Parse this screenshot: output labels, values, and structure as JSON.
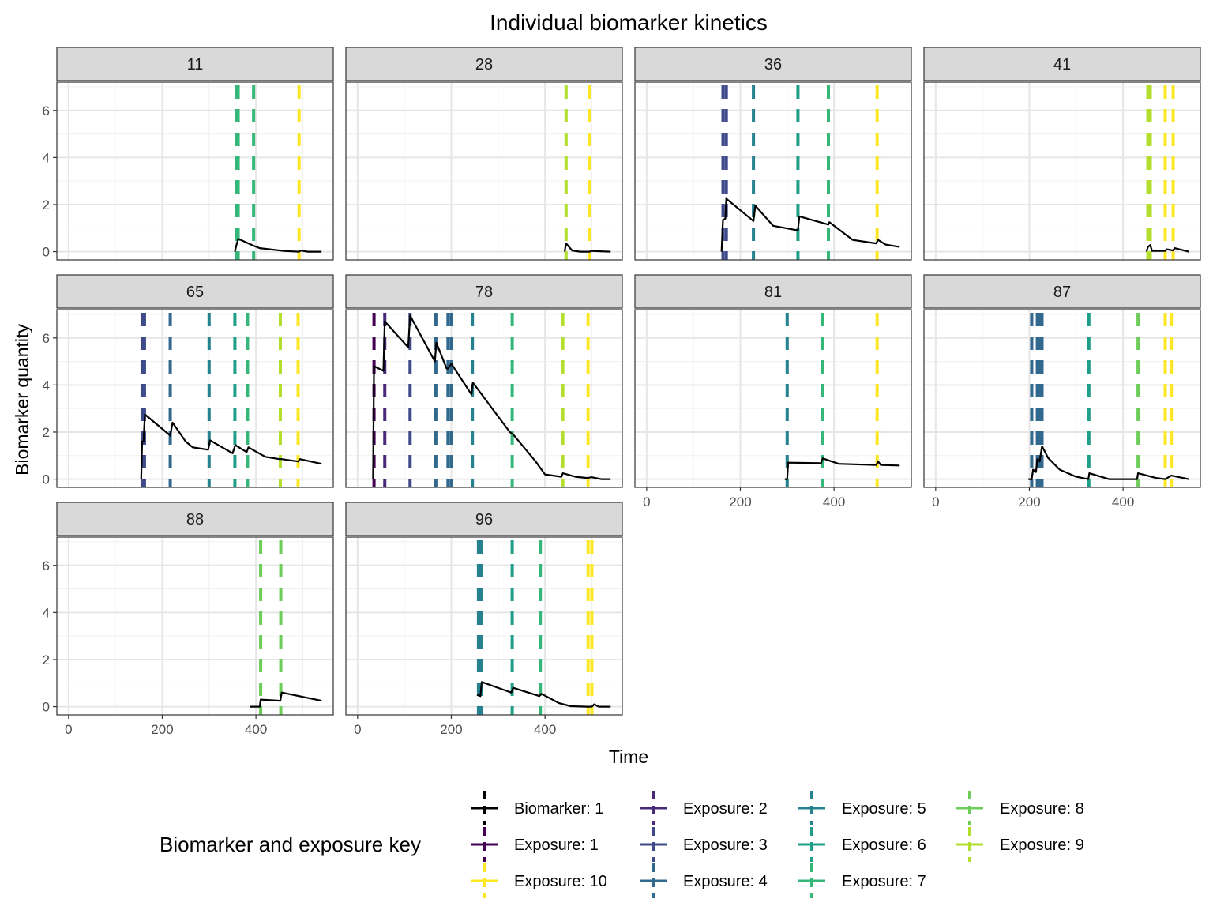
{
  "chart_data": {
    "type": "line",
    "title": "Individual biomarker kinetics",
    "xlabel": "Time",
    "ylabel": "Biomarker quantity",
    "xlim": [
      -25,
      565
    ],
    "ylim": [
      -0.35,
      7.2
    ],
    "x_ticks": [
      0,
      200,
      400
    ],
    "y_ticks": [
      0,
      2,
      4,
      6
    ],
    "grid": true,
    "facet_layout": {
      "ncol": 4,
      "nrow": 3
    },
    "legend": {
      "title": "Biomarker and exposure key",
      "position": "bottom",
      "entries": [
        {
          "label": "Biomarker: 1",
          "color": "#000000"
        },
        {
          "label": "Exposure: 1",
          "color": "#440154"
        },
        {
          "label": "Exposure: 10",
          "color": "#FDE725"
        },
        {
          "label": "Exposure: 2",
          "color": "#482878"
        },
        {
          "label": "Exposure: 3",
          "color": "#3E4A89"
        },
        {
          "label": "Exposure: 4",
          "color": "#31688E"
        },
        {
          "label": "Exposure: 5",
          "color": "#26828E"
        },
        {
          "label": "Exposure: 6",
          "color": "#1F9E89"
        },
        {
          "label": "Exposure: 7",
          "color": "#35B779"
        },
        {
          "label": "Exposure: 8",
          "color": "#6DCD59"
        },
        {
          "label": "Exposure: 9",
          "color": "#B4DE2C"
        }
      ]
    },
    "panels": [
      {
        "label": "11",
        "exposures": [
          {
            "x": 358,
            "color": "#35B779"
          },
          {
            "x": 362,
            "color": "#35B779"
          },
          {
            "x": 395,
            "color": "#35B779"
          },
          {
            "x": 492,
            "color": "#FDE725"
          }
        ],
        "series": [
          {
            "name": "Biomarker: 1",
            "points": [
              [
                355,
                0.0
              ],
              [
                358,
                0.25
              ],
              [
                362,
                0.55
              ],
              [
                395,
                0.25
              ],
              [
                408,
                0.15
              ],
              [
                460,
                0.03
              ],
              [
                492,
                0.0
              ],
              [
                496,
                0.05
              ],
              [
                510,
                0.0
              ],
              [
                540,
                0.0
              ]
            ]
          }
        ]
      },
      {
        "label": "28",
        "exposures": [
          {
            "x": 445,
            "color": "#B4DE2C"
          },
          {
            "x": 495,
            "color": "#FDE725"
          }
        ],
        "series": [
          {
            "name": "Biomarker: 1",
            "points": [
              [
                442,
                0.0
              ],
              [
                445,
                0.35
              ],
              [
                458,
                0.05
              ],
              [
                475,
                0.0
              ],
              [
                495,
                0.0
              ],
              [
                500,
                0.03
              ],
              [
                540,
                0.0
              ]
            ]
          }
        ]
      },
      {
        "label": "36",
        "exposures": [
          {
            "x": 163,
            "color": "#3E4A89"
          },
          {
            "x": 170,
            "color": "#3E4A89"
          },
          {
            "x": 228,
            "color": "#26828E"
          },
          {
            "x": 323,
            "color": "#1F9E89"
          },
          {
            "x": 388,
            "color": "#35B779"
          },
          {
            "x": 492,
            "color": "#FDE725"
          }
        ],
        "series": [
          {
            "name": "Biomarker: 1",
            "points": [
              [
                160,
                0.0
              ],
              [
                163,
                1.35
              ],
              [
                168,
                1.4
              ],
              [
                170,
                2.25
              ],
              [
                228,
                1.3
              ],
              [
                232,
                1.95
              ],
              [
                270,
                1.1
              ],
              [
                323,
                0.9
              ],
              [
                326,
                1.5
              ],
              [
                388,
                1.15
              ],
              [
                390,
                1.25
              ],
              [
                440,
                0.5
              ],
              [
                490,
                0.35
              ],
              [
                494,
                0.5
              ],
              [
                510,
                0.3
              ],
              [
                540,
                0.2
              ]
            ]
          }
        ]
      },
      {
        "label": "41",
        "exposures": [
          {
            "x": 453,
            "color": "#B4DE2C"
          },
          {
            "x": 458,
            "color": "#B4DE2C"
          },
          {
            "x": 490,
            "color": "#FDE725"
          },
          {
            "x": 507,
            "color": "#FDE725"
          }
        ],
        "series": [
          {
            "name": "Biomarker: 1",
            "points": [
              [
                450,
                0.0
              ],
              [
                453,
                0.2
              ],
              [
                458,
                0.28
              ],
              [
                462,
                0.03
              ],
              [
                490,
                0.03
              ],
              [
                493,
                0.1
              ],
              [
                507,
                0.05
              ],
              [
                510,
                0.15
              ],
              [
                540,
                0.0
              ]
            ]
          }
        ]
      },
      {
        "label": "65",
        "exposures": [
          {
            "x": 157,
            "color": "#3E4A89"
          },
          {
            "x": 162,
            "color": "#3E4A89"
          },
          {
            "x": 217,
            "color": "#31688E"
          },
          {
            "x": 300,
            "color": "#26828E"
          },
          {
            "x": 355,
            "color": "#1F9E89"
          },
          {
            "x": 382,
            "color": "#35B779"
          },
          {
            "x": 452,
            "color": "#B4DE2C"
          },
          {
            "x": 490,
            "color": "#FDE725"
          }
        ],
        "series": [
          {
            "name": "Biomarker: 1",
            "points": [
              [
                155,
                0.0
              ],
              [
                157,
                1.6
              ],
              [
                160,
                1.6
              ],
              [
                163,
                2.75
              ],
              [
                217,
                1.85
              ],
              [
                222,
                2.4
              ],
              [
                250,
                1.6
              ],
              [
                265,
                1.35
              ],
              [
                298,
                1.25
              ],
              [
                302,
                1.65
              ],
              [
                350,
                1.1
              ],
              [
                356,
                1.45
              ],
              [
                380,
                1.15
              ],
              [
                384,
                1.35
              ],
              [
                420,
                0.95
              ],
              [
                450,
                0.85
              ],
              [
                455,
                0.85
              ],
              [
                490,
                0.75
              ],
              [
                494,
                0.85
              ],
              [
                540,
                0.65
              ]
            ]
          }
        ]
      },
      {
        "label": "78",
        "exposures": [
          {
            "x": 35,
            "color": "#440154"
          },
          {
            "x": 58,
            "color": "#482878"
          },
          {
            "x": 112,
            "color": "#3E4A89"
          },
          {
            "x": 167,
            "color": "#31688E"
          },
          {
            "x": 193,
            "color": "#31688E"
          },
          {
            "x": 200,
            "color": "#31688E"
          },
          {
            "x": 245,
            "color": "#26828E"
          },
          {
            "x": 330,
            "color": "#35B779"
          },
          {
            "x": 438,
            "color": "#B4DE2C"
          },
          {
            "x": 492,
            "color": "#FDE725"
          }
        ],
        "series": [
          {
            "name": "Biomarker: 1",
            "points": [
              [
                33,
                0.0
              ],
              [
                35,
                4.8
              ],
              [
                55,
                4.6
              ],
              [
                58,
                6.7
              ],
              [
                108,
                5.6
              ],
              [
                112,
                6.95
              ],
              [
                165,
                5.0
              ],
              [
                168,
                5.8
              ],
              [
                190,
                4.7
              ],
              [
                193,
                4.7
              ],
              [
                200,
                4.9
              ],
              [
                243,
                3.6
              ],
              [
                246,
                4.1
              ],
              [
                325,
                2.0
              ],
              [
                332,
                1.9
              ],
              [
                380,
                0.75
              ],
              [
                400,
                0.2
              ],
              [
                435,
                0.1
              ],
              [
                438,
                0.25
              ],
              [
                465,
                0.1
              ],
              [
                490,
                0.05
              ],
              [
                500,
                0.08
              ],
              [
                520,
                0.0
              ],
              [
                540,
                0.0
              ]
            ]
          }
        ]
      },
      {
        "label": "81",
        "exposures": [
          {
            "x": 300,
            "color": "#26828E"
          },
          {
            "x": 375,
            "color": "#35B779"
          },
          {
            "x": 492,
            "color": "#FDE725"
          }
        ],
        "series": [
          {
            "name": "Biomarker: 1",
            "points": [
              [
                295,
                0.0
              ],
              [
                300,
                0.0
              ],
              [
                302,
                0.7
              ],
              [
                372,
                0.68
              ],
              [
                376,
                0.88
              ],
              [
                410,
                0.65
              ],
              [
                490,
                0.6
              ],
              [
                494,
                0.75
              ],
              [
                500,
                0.6
              ],
              [
                540,
                0.58
              ]
            ]
          }
        ]
      },
      {
        "label": "87",
        "exposures": [
          {
            "x": 205,
            "color": "#31688E"
          },
          {
            "x": 217,
            "color": "#31688E"
          },
          {
            "x": 222,
            "color": "#31688E"
          },
          {
            "x": 227,
            "color": "#31688E"
          },
          {
            "x": 327,
            "color": "#1F9E89"
          },
          {
            "x": 432,
            "color": "#6DCD59"
          },
          {
            "x": 490,
            "color": "#FDE725"
          },
          {
            "x": 503,
            "color": "#FDE725"
          }
        ],
        "series": [
          {
            "name": "Biomarker: 1",
            "points": [
              [
                198,
                0.0
              ],
              [
                205,
                0.0
              ],
              [
                208,
                0.4
              ],
              [
                214,
                0.3
              ],
              [
                217,
                0.85
              ],
              [
                222,
                0.75
              ],
              [
                227,
                1.4
              ],
              [
                240,
                0.9
              ],
              [
                265,
                0.4
              ],
              [
                300,
                0.1
              ],
              [
                326,
                0.0
              ],
              [
                328,
                0.25
              ],
              [
                370,
                0.0
              ],
              [
                430,
                0.0
              ],
              [
                432,
                0.25
              ],
              [
                470,
                0.05
              ],
              [
                490,
                0.0
              ],
              [
                503,
                0.15
              ],
              [
                540,
                0.0
              ]
            ]
          }
        ]
      },
      {
        "label": "88",
        "exposures": [
          {
            "x": 410,
            "color": "#6DCD59"
          },
          {
            "x": 453,
            "color": "#6DCD59"
          }
        ],
        "series": [
          {
            "name": "Biomarker: 1",
            "points": [
              [
                388,
                0.0
              ],
              [
                408,
                0.0
              ],
              [
                410,
                0.3
              ],
              [
                452,
                0.25
              ],
              [
                455,
                0.6
              ],
              [
                540,
                0.25
              ]
            ]
          }
        ]
      },
      {
        "label": "96",
        "exposures": [
          {
            "x": 258,
            "color": "#26828E"
          },
          {
            "x": 264,
            "color": "#26828E"
          },
          {
            "x": 330,
            "color": "#1F9E89"
          },
          {
            "x": 390,
            "color": "#35B779"
          },
          {
            "x": 492,
            "color": "#FDE725"
          },
          {
            "x": 500,
            "color": "#FDE725"
          }
        ],
        "series": [
          {
            "name": "Biomarker: 1",
            "points": [
              [
                255,
                0.5
              ],
              [
                262,
                0.45
              ],
              [
                265,
                1.05
              ],
              [
                328,
                0.6
              ],
              [
                332,
                0.8
              ],
              [
                388,
                0.45
              ],
              [
                392,
                0.55
              ],
              [
                430,
                0.15
              ],
              [
                455,
                0.02
              ],
              [
                490,
                0.0
              ],
              [
                500,
                0.0
              ],
              [
                505,
                0.1
              ],
              [
                515,
                0.0
              ],
              [
                540,
                0.0
              ]
            ]
          }
        ]
      }
    ]
  }
}
